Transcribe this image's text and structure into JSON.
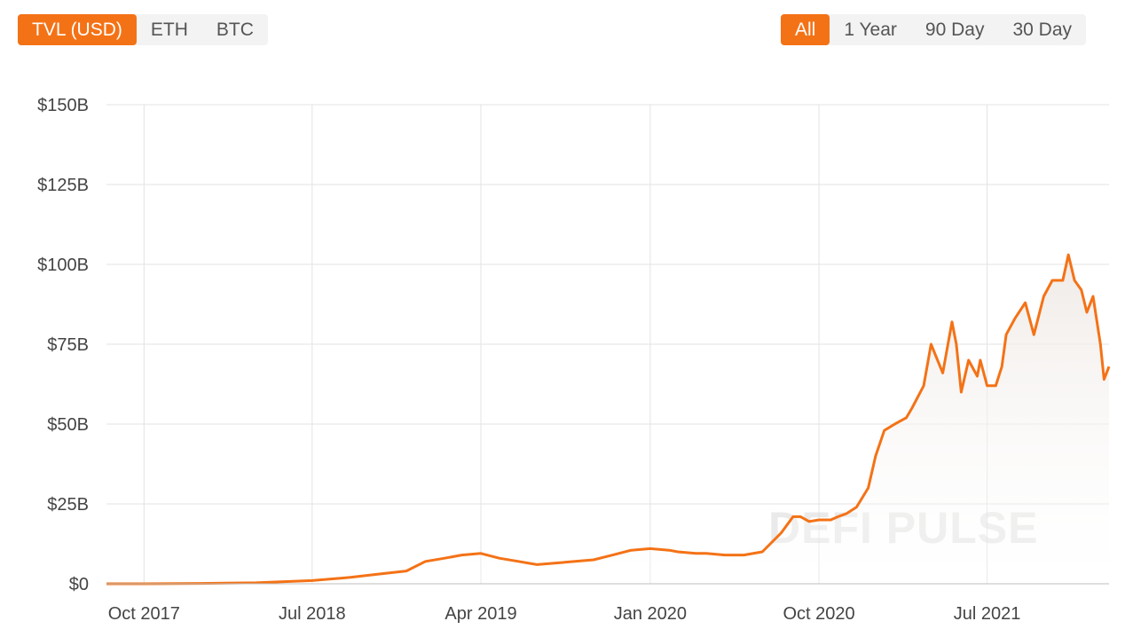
{
  "currency_tabs": [
    {
      "label": "TVL (USD)",
      "active": true
    },
    {
      "label": "ETH",
      "active": false
    },
    {
      "label": "BTC",
      "active": false
    }
  ],
  "range_tabs": [
    {
      "label": "All",
      "active": true
    },
    {
      "label": "1 Year",
      "active": false
    },
    {
      "label": "90 Day",
      "active": false
    },
    {
      "label": "30 Day",
      "active": false
    }
  ],
  "watermark": "DEFI PULSE",
  "colors": {
    "accent": "#f47216",
    "line": "#f47216",
    "grid": "#e3e3e3"
  },
  "chart_data": {
    "type": "area",
    "title": "",
    "xlabel": "",
    "ylabel": "",
    "ylim": [
      0,
      150
    ],
    "y_unit": "billion USD",
    "y_ticks": [
      0,
      25,
      50,
      75,
      100,
      125,
      150
    ],
    "y_tick_labels": [
      "$0",
      "$25B",
      "$50B",
      "$75B",
      "$100B",
      "$125B",
      "$150B"
    ],
    "xlim": [
      "2017-08-01",
      "2022-01-15"
    ],
    "x_ticks": [
      "2017-10-01",
      "2018-07-01",
      "2019-04-01",
      "2020-01-01",
      "2020-10-01",
      "2021-07-01"
    ],
    "x_tick_labels": [
      "Oct 2017",
      "Jul 2018",
      "Apr 2019",
      "Jan 2020",
      "Oct 2020",
      "Jul 2021"
    ],
    "grid": true,
    "series": [
      {
        "x": [
          "2017-08-01",
          "2017-10-01",
          "2018-01-01",
          "2018-04-01",
          "2018-07-01",
          "2018-09-01",
          "2018-10-15",
          "2018-12-01",
          "2019-01-01",
          "2019-02-01",
          "2019-03-01",
          "2019-04-01",
          "2019-05-01",
          "2019-06-01",
          "2019-07-01",
          "2019-08-01",
          "2019-09-01",
          "2019-10-01",
          "2019-11-01",
          "2019-12-01",
          "2020-01-01",
          "2020-02-01",
          "2020-02-15",
          "2020-03-15",
          "2020-04-01",
          "2020-05-01",
          "2020-06-01",
          "2020-07-01",
          "2020-08-01",
          "2020-08-20",
          "2020-09-01",
          "2020-09-15",
          "2020-10-01",
          "2020-10-20",
          "2020-11-01",
          "2020-11-15",
          "2020-12-01",
          "2020-12-20",
          "2021-01-01",
          "2021-01-15",
          "2021-02-01",
          "2021-02-20",
          "2021-03-01",
          "2021-03-20",
          "2021-04-01",
          "2021-04-20",
          "2021-05-05",
          "2021-05-12",
          "2021-05-20",
          "2021-06-01",
          "2021-06-15",
          "2021-06-20",
          "2021-07-01",
          "2021-07-15",
          "2021-07-25",
          "2021-08-01",
          "2021-08-15",
          "2021-09-01",
          "2021-09-15",
          "2021-10-01",
          "2021-10-15",
          "2021-11-01",
          "2021-11-10",
          "2021-11-20",
          "2021-12-01",
          "2021-12-10",
          "2021-12-20",
          "2022-01-01",
          "2022-01-07",
          "2022-01-15"
        ],
        "y": [
          0,
          0,
          0.1,
          0.3,
          1,
          2,
          3,
          4,
          7,
          8,
          9,
          9.5,
          8,
          7,
          6,
          6.5,
          7,
          7.5,
          9,
          10.5,
          11,
          10.5,
          10,
          9.5,
          9.5,
          9,
          9,
          10,
          16,
          21,
          21,
          19.5,
          20,
          20,
          21,
          22,
          24,
          30,
          40,
          48,
          50,
          52,
          55,
          62,
          75,
          66,
          82,
          75,
          60,
          70,
          65,
          70,
          62,
          62,
          68,
          78,
          83,
          88,
          78,
          90,
          95,
          95,
          103,
          95,
          92,
          85,
          90,
          75,
          64,
          68
        ]
      }
    ]
  }
}
